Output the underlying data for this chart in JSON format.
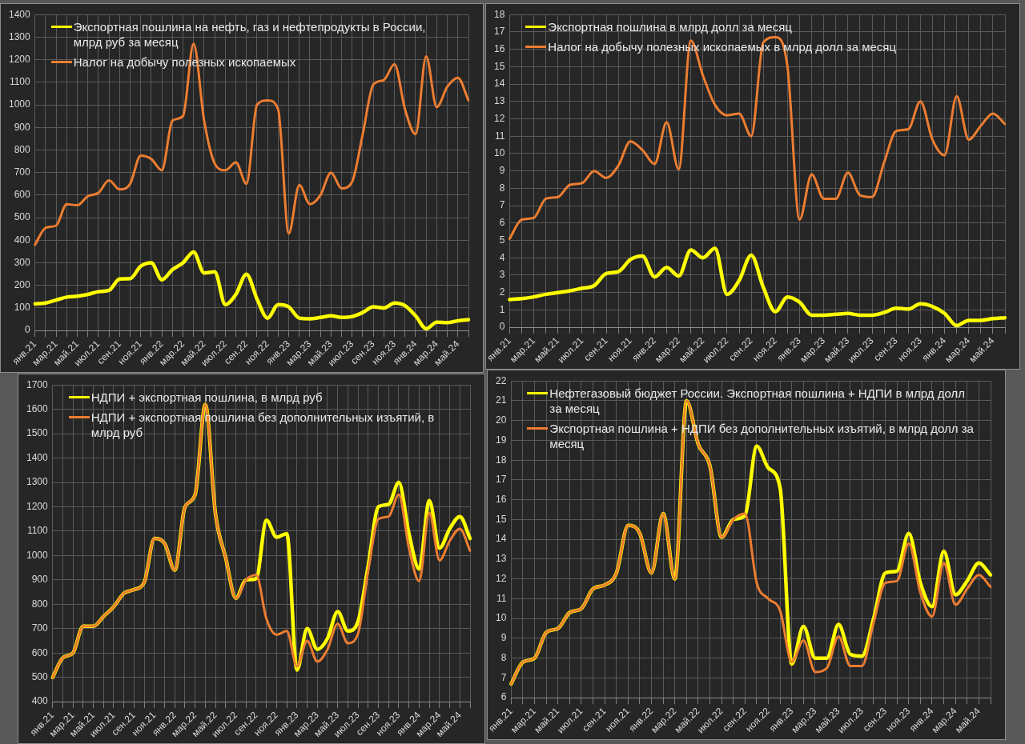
{
  "chart_data": [
    {
      "type": "line",
      "categories": [
        "янв.21",
        null,
        "мар.21",
        null,
        "май.21",
        null,
        "июл.21",
        null,
        "сен.21",
        null,
        "ноя.21",
        null,
        "янв.22",
        null,
        "мар.22",
        null,
        "май.22",
        null,
        "июл.22",
        null,
        "сен.22",
        null,
        "ноя.22",
        null,
        "янв.23",
        null,
        "мар.23",
        null,
        "май.23",
        null,
        "июл.23",
        null,
        "сен.23",
        null,
        "ноя.23",
        null,
        "янв.24",
        null,
        "мар.24",
        null,
        "май.24",
        null
      ],
      "series": [
        {
          "name": "Экспортная пошлина на нефть, газ и нефтепродукты в России, млрд руб за месяц",
          "color": "#ffff00",
          "values": [
            118,
            122,
            135,
            148,
            152,
            160,
            172,
            178,
            228,
            230,
            285,
            300,
            225,
            270,
            300,
            348,
            255,
            260,
            115,
            160,
            250,
            140,
            55,
            115,
            105,
            55,
            52,
            58,
            65,
            58,
            62,
            80,
            105,
            100,
            122,
            110,
            65,
            8,
            37,
            35,
            43,
            48
          ]
        },
        {
          "name": "Налог на добычу полезных ископаемых",
          "color": "#ed7d31",
          "values": [
            380,
            455,
            465,
            560,
            555,
            595,
            610,
            665,
            625,
            650,
            775,
            760,
            710,
            930,
            950,
            1270,
            930,
            740,
            710,
            745,
            650,
            1000,
            1020,
            980,
            430,
            645,
            560,
            600,
            700,
            630,
            660,
            870,
            1090,
            1110,
            1180,
            980,
            870,
            1215,
            990,
            1080,
            1120,
            1020
          ]
        }
      ],
      "ylim": [
        0,
        1400
      ],
      "yticks": [
        0,
        100,
        200,
        300,
        400,
        500,
        600,
        700,
        800,
        900,
        1000,
        1100,
        1200,
        1300,
        1400
      ],
      "grid": true,
      "legend": "top left",
      "marker": "none"
    },
    {
      "type": "line",
      "categories": [
        "янв.21",
        null,
        "мар.21",
        null,
        "май.21",
        null,
        "июл.21",
        null,
        "сен.21",
        null,
        "ноя.21",
        null,
        "янв.22",
        null,
        "мар.22",
        null,
        "май.22",
        null,
        "июл.22",
        null,
        "сен.22",
        null,
        "ноя.22",
        null,
        "янв.23",
        null,
        "мар.23",
        null,
        "май.23",
        null,
        "июл.23",
        null,
        "сен.23",
        null,
        "ноя.23",
        null,
        "янв.24",
        null,
        "мар.24",
        null,
        "май.24",
        null
      ],
      "series": [
        {
          "name": "Экспортная пошлина в млрд долл за месяц",
          "color": "#ffff00",
          "values": [
            1.6,
            1.65,
            1.75,
            1.9,
            2.0,
            2.1,
            2.25,
            2.4,
            3.1,
            3.2,
            3.9,
            4.1,
            2.9,
            3.45,
            2.95,
            4.45,
            4.0,
            4.55,
            1.9,
            2.7,
            4.15,
            2.3,
            0.9,
            1.75,
            1.45,
            0.7,
            0.7,
            0.75,
            0.8,
            0.7,
            0.7,
            0.85,
            1.1,
            1.05,
            1.35,
            1.2,
            0.8,
            0.1,
            0.4,
            0.4,
            0.5,
            0.55
          ]
        },
        {
          "name": "Налог на добычу полезных ископаемых в млрд долл за месяц",
          "color": "#ed7d31",
          "values": [
            5.1,
            6.2,
            6.3,
            7.4,
            7.5,
            8.2,
            8.3,
            9.0,
            8.6,
            9.3,
            10.7,
            10.2,
            9.4,
            11.8,
            9.1,
            16.5,
            14.5,
            12.8,
            12.2,
            12.3,
            11.0,
            16.4,
            16.7,
            15.0,
            6.2,
            8.8,
            7.4,
            7.4,
            8.9,
            7.6,
            7.5,
            9.5,
            11.3,
            11.4,
            13.0,
            10.8,
            9.9,
            13.3,
            10.8,
            11.6,
            12.3,
            11.7
          ]
        }
      ],
      "ylim": [
        0,
        18
      ],
      "yticks": [
        0,
        1,
        2,
        3,
        4,
        5,
        6,
        7,
        8,
        9,
        10,
        11,
        12,
        13,
        14,
        15,
        16,
        17,
        18
      ],
      "grid": true,
      "legend": "top left",
      "marker": "none"
    },
    {
      "type": "line",
      "categories": [
        "янв.21",
        null,
        "мар.21",
        null,
        "май.21",
        null,
        "июл.21",
        null,
        "сен.21",
        null,
        "ноя.21",
        null,
        "янв.22",
        null,
        "мар.22",
        null,
        "май.22",
        null,
        "июл.22",
        null,
        "сен.22",
        null,
        "ноя.22",
        null,
        "янв.23",
        null,
        "мар.23",
        null,
        "май.23",
        null,
        "июл.23",
        null,
        "сен.23",
        null,
        "ноя.23",
        null,
        "янв.24",
        null,
        "мар.24",
        null,
        "май.24",
        null
      ],
      "series": [
        {
          "name": "НДПИ + экспортная пошлина, в млрд руб",
          "color": "#ffff00",
          "values": [
            500,
            580,
            600,
            710,
            710,
            750,
            790,
            845,
            860,
            890,
            1070,
            1050,
            940,
            1200,
            1250,
            1620,
            1170,
            990,
            825,
            900,
            905,
            1145,
            1075,
            1090,
            530,
            700,
            615,
            660,
            770,
            690,
            730,
            960,
            1200,
            1210,
            1300,
            1090,
            945,
            1225,
            1030,
            1110,
            1160,
            1070
          ]
        },
        {
          "name": "НДПИ + экспортная пошлина без дополнительных изъятий, в млрд руб",
          "color": "#ed7d31",
          "values": [
            500,
            580,
            600,
            710,
            710,
            750,
            790,
            845,
            860,
            890,
            1070,
            1050,
            940,
            1200,
            1250,
            1620,
            1170,
            990,
            825,
            900,
            920,
            740,
            675,
            690,
            545,
            650,
            565,
            615,
            720,
            640,
            680,
            940,
            1150,
            1160,
            1250,
            1030,
            895,
            1175,
            980,
            1060,
            1110,
            1020
          ]
        }
      ],
      "ylim": [
        400,
        1700
      ],
      "yticks": [
        400,
        500,
        600,
        700,
        800,
        900,
        1000,
        1100,
        1200,
        1300,
        1400,
        1500,
        1600,
        1700
      ],
      "grid": true,
      "legend": "top left",
      "marker": "none"
    },
    {
      "type": "line",
      "categories": [
        "янв.21",
        null,
        "мар.21",
        null,
        "май.21",
        null,
        "июл.21",
        null,
        "сен.21",
        null,
        "ноя.21",
        null,
        "янв.22",
        null,
        "мар.22",
        null,
        "май.22",
        null,
        "июл.22",
        null,
        "сен.22",
        null,
        "ноя.22",
        null,
        "янв.23",
        null,
        "мар.23",
        null,
        "май.23",
        null,
        "июл.23",
        null,
        "сен.23",
        null,
        "ноя.23",
        null,
        "янв.24",
        null,
        "мар.24",
        null,
        "май.24",
        null
      ],
      "series": [
        {
          "name": "Нефтегазовый бюджет России. Экспортная пошлина + НДПИ в млрд долл за месяц",
          "color": "#ffff00",
          "values": [
            6.7,
            7.8,
            8.0,
            9.3,
            9.5,
            10.3,
            10.5,
            11.5,
            11.7,
            12.3,
            14.7,
            14.3,
            12.3,
            15.3,
            12.0,
            21.0,
            18.8,
            17.7,
            14.1,
            15.0,
            15.2,
            18.7,
            17.6,
            16.6,
            7.7,
            9.6,
            8.0,
            8.0,
            9.7,
            8.2,
            8.1,
            10.0,
            12.3,
            12.4,
            14.3,
            11.8,
            10.6,
            13.4,
            11.2,
            11.9,
            12.8,
            12.2
          ]
        },
        {
          "name": "Экспортная пошлина + НДПИ без дополнительных изъятий, в млрд долл за месяц",
          "color": "#ed7d31",
          "values": [
            6.7,
            7.8,
            8.0,
            9.3,
            9.5,
            10.3,
            10.5,
            11.5,
            11.7,
            12.3,
            14.7,
            14.3,
            12.3,
            15.3,
            12.0,
            21.0,
            18.8,
            17.7,
            14.1,
            15.0,
            15.3,
            11.8,
            11.0,
            10.4,
            7.8,
            8.9,
            7.3,
            7.5,
            9.1,
            7.6,
            7.6,
            9.8,
            11.8,
            11.9,
            13.8,
            11.3,
            10.1,
            12.8,
            10.7,
            11.5,
            12.2,
            11.6
          ]
        }
      ],
      "ylim": [
        6,
        22
      ],
      "yticks": [
        6,
        7,
        8,
        9,
        10,
        11,
        12,
        13,
        14,
        15,
        16,
        17,
        18,
        19,
        20,
        21,
        22
      ],
      "grid": true,
      "legend": "top left",
      "marker": "none"
    }
  ]
}
